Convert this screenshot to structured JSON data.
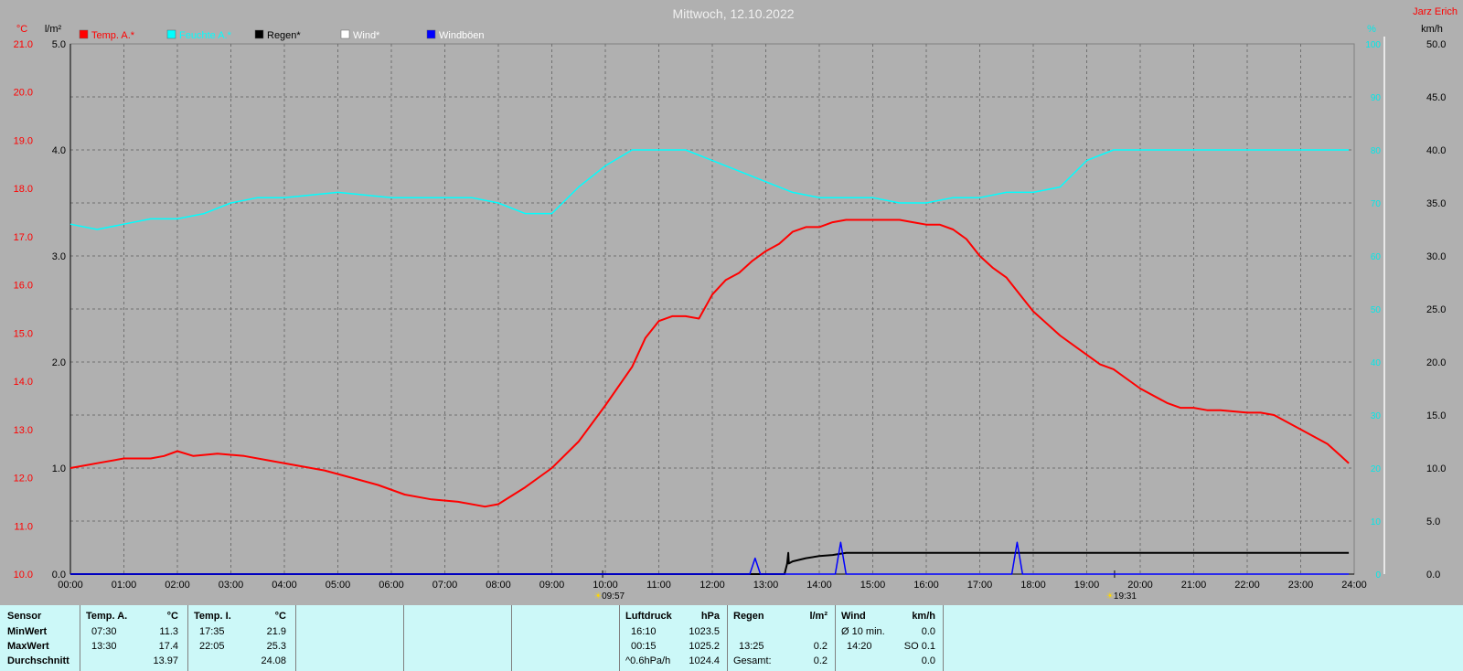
{
  "chart_data": {
    "type": "line",
    "title": "Mittwoch, 12.10.2022",
    "author": "Jarz Erich",
    "left_axis_temp": {
      "label": "°C",
      "ylim": [
        10.0,
        21.0
      ],
      "ticks": [
        "10.0",
        "11.0",
        "12.0",
        "13.0",
        "14.0",
        "15.0",
        "16.0",
        "17.0",
        "18.0",
        "19.0",
        "20.0",
        "21.0"
      ]
    },
    "left_axis_rain": {
      "label": "l/m²",
      "ylim": [
        0.0,
        5.0
      ],
      "ticks": [
        "0.0",
        "1.0",
        "2.0",
        "3.0",
        "4.0",
        "5.0"
      ]
    },
    "right_axis_humidity": {
      "label": "%",
      "ylim": [
        0,
        100
      ],
      "ticks": [
        "0",
        "10",
        "20",
        "30",
        "40",
        "50",
        "60",
        "70",
        "80",
        "90",
        "100"
      ]
    },
    "right_axis_wind": {
      "label": "km/h",
      "ylim": [
        0.0,
        50.0
      ],
      "ticks": [
        "0.0",
        "5.0",
        "10.0",
        "15.0",
        "20.0",
        "25.0",
        "30.0",
        "35.0",
        "40.0",
        "45.0",
        "50.0"
      ]
    },
    "x_ticks": [
      "00:00",
      "01:00",
      "02:00",
      "03:00",
      "04:00",
      "05:00",
      "06:00",
      "07:00",
      "08:00",
      "09:00",
      "10:00",
      "11:00",
      "12:00",
      "13:00",
      "14:00",
      "15:00",
      "16:00",
      "17:00",
      "18:00",
      "19:00",
      "20:00",
      "21:00",
      "22:00",
      "23:00",
      "24:00"
    ],
    "x_markers": [
      {
        "hour": 9.95,
        "label": "09:57"
      },
      {
        "hour": 19.52,
        "label": "19:31"
      }
    ],
    "grid": true,
    "legend_position": "top-left",
    "legend": [
      {
        "name": "Temp. A.*",
        "color": "#ff0000"
      },
      {
        "name": "Feuchte A.*",
        "color": "#00ffff"
      },
      {
        "name": "Regen*",
        "color": "#000000"
      },
      {
        "name": "Wind*",
        "color": "#ffffff"
      },
      {
        "name": "Windböen",
        "color": "#0000ff"
      }
    ],
    "series": [
      {
        "name": "Temp. A.*",
        "axis": "temp",
        "color": "#ff0000",
        "x": [
          0,
          0.5,
          1,
          1.5,
          1.75,
          2,
          2.3,
          2.75,
          3.25,
          3.75,
          4.25,
          4.75,
          5.25,
          5.75,
          6.25,
          6.75,
          7.25,
          7.75,
          8,
          8.5,
          9,
          9.5,
          10,
          10.5,
          10.75,
          11,
          11.25,
          11.5,
          11.75,
          12,
          12.25,
          12.5,
          12.75,
          13,
          13.25,
          13.5,
          13.75,
          14,
          14.25,
          14.5,
          14.75,
          15,
          15.25,
          15.5,
          15.75,
          16,
          16.25,
          16.5,
          16.75,
          17,
          17.25,
          17.5,
          17.75,
          18,
          18.5,
          19,
          19.25,
          19.5,
          19.75,
          20,
          20.5,
          20.75,
          21,
          21.25,
          21.5,
          22,
          22.25,
          22.5,
          22.75,
          23,
          23.5,
          23.75,
          23.9
        ],
        "values": [
          12.2,
          12.3,
          12.4,
          12.4,
          12.45,
          12.55,
          12.45,
          12.5,
          12.45,
          12.35,
          12.25,
          12.15,
          12.0,
          11.85,
          11.65,
          11.55,
          11.5,
          11.4,
          11.45,
          11.8,
          12.2,
          12.75,
          13.5,
          14.3,
          14.9,
          15.25,
          15.35,
          15.35,
          15.3,
          15.8,
          16.1,
          16.25,
          16.5,
          16.7,
          16.85,
          17.1,
          17.2,
          17.2,
          17.3,
          17.35,
          17.35,
          17.35,
          17.35,
          17.35,
          17.3,
          17.25,
          17.25,
          17.15,
          16.95,
          16.6,
          16.35,
          16.15,
          15.8,
          15.45,
          14.95,
          14.55,
          14.35,
          14.25,
          14.05,
          13.85,
          13.55,
          13.45,
          13.45,
          13.4,
          13.4,
          13.35,
          13.35,
          13.3,
          13.15,
          13.0,
          12.7,
          12.45,
          12.3
        ]
      },
      {
        "name": "Feuchte A.*",
        "axis": "humidity",
        "color": "#00ffff",
        "x": [
          0,
          0.5,
          1,
          1.5,
          2,
          2.5,
          3,
          3.5,
          4,
          5,
          6,
          7,
          7.5,
          8,
          8.5,
          9,
          9.5,
          10,
          10.5,
          11,
          11.5,
          12,
          12.5,
          13,
          13.5,
          14,
          14.5,
          15,
          15.5,
          16,
          16.5,
          17,
          17.5,
          18,
          18.5,
          19,
          19.5,
          20,
          21,
          22,
          22.5,
          23,
          23.5,
          23.9
        ],
        "values": [
          66,
          65,
          66,
          67,
          67,
          68,
          70,
          71,
          71,
          72,
          71,
          71,
          71,
          70,
          68,
          68,
          73,
          77,
          80,
          80,
          80,
          78,
          76,
          74,
          72,
          71,
          71,
          71,
          70,
          70,
          71,
          71,
          72,
          72,
          73,
          78,
          80,
          80,
          80,
          80,
          80,
          80,
          80,
          80
        ]
      },
      {
        "name": "Regen*",
        "axis": "rain",
        "color": "#000000",
        "x": [
          0,
          13.35,
          13.4,
          13.42,
          13.43,
          13.5,
          13.75,
          14,
          14.25,
          14.5,
          23.9
        ],
        "values": [
          0,
          0,
          0.1,
          0.2,
          0.1,
          0.12,
          0.15,
          0.17,
          0.18,
          0.2,
          0.2
        ]
      },
      {
        "name": "Windböen",
        "axis": "wind",
        "color": "#0000ff",
        "x": [
          0,
          12.7,
          12.8,
          12.9,
          13.0,
          14.3,
          14.4,
          14.5,
          14.6,
          17.6,
          17.7,
          17.8,
          23.9
        ],
        "values": [
          0,
          0,
          1.5,
          0,
          0,
          0,
          3.0,
          0,
          0,
          0,
          3.0,
          0,
          0
        ]
      }
    ]
  },
  "stats": {
    "sensor": {
      "title": "Sensor",
      "rows": [
        "MinWert",
        "MaxWert",
        "Durchschnitt"
      ]
    },
    "temp_a": {
      "title": "Temp. A.",
      "unit": "°C",
      "rows": [
        [
          "07:30",
          "11.3"
        ],
        [
          "13:30",
          "17.4"
        ],
        [
          "",
          "13.97"
        ]
      ]
    },
    "temp_i": {
      "title": "Temp. I.",
      "unit": "°C",
      "rows": [
        [
          "17:35",
          "21.9"
        ],
        [
          "22:05",
          "25.3"
        ],
        [
          "",
          "24.08"
        ]
      ]
    },
    "luftdruck": {
      "title": "Luftdruck",
      "unit": "hPa",
      "rows": [
        [
          "16:10",
          "1023.5"
        ],
        [
          "00:15",
          "1025.2"
        ],
        [
          "^0.6hPa/h",
          "1024.4"
        ]
      ]
    },
    "regen": {
      "title": "Regen",
      "unit": "l/m²",
      "rows": [
        [
          "",
          ""
        ],
        [
          "13:25",
          "0.2"
        ],
        [
          "Gesamt:",
          "0.2"
        ]
      ]
    },
    "wind": {
      "title": "Wind",
      "unit": "km/h",
      "rows": [
        [
          "Ø 10 min.",
          "0.0"
        ],
        [
          "14:20",
          "SO 0.1"
        ],
        [
          "",
          "0.0"
        ]
      ]
    }
  }
}
